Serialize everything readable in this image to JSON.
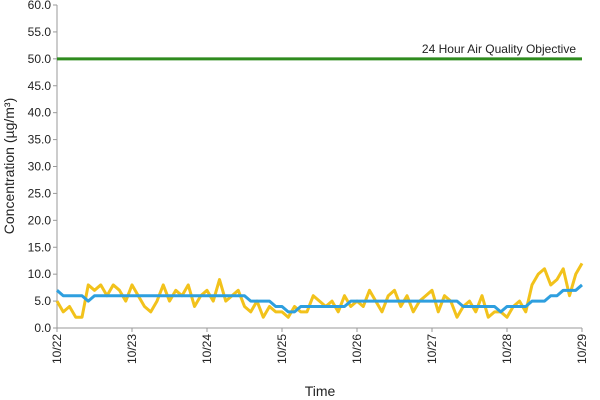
{
  "chart_data": {
    "type": "line",
    "xlabel": "Time",
    "ylabel": "Concentration (µg/m³)",
    "categories": [
      "10/22",
      null,
      null,
      null,
      null,
      null,
      null,
      null,
      null,
      null,
      null,
      null,
      "10/23",
      null,
      null,
      null,
      null,
      null,
      null,
      null,
      null,
      null,
      null,
      null,
      "10/24",
      null,
      null,
      null,
      null,
      null,
      null,
      null,
      null,
      null,
      null,
      null,
      "10/25",
      null,
      null,
      null,
      null,
      null,
      null,
      null,
      null,
      null,
      null,
      null,
      "10/26",
      null,
      null,
      null,
      null,
      null,
      null,
      null,
      null,
      null,
      null,
      null,
      "10/27",
      null,
      null,
      null,
      null,
      null,
      null,
      null,
      null,
      null,
      null,
      null,
      "10/28",
      null,
      null,
      null,
      null,
      null,
      null,
      null,
      null,
      null,
      null,
      null,
      "10/29"
    ],
    "series": [
      {
        "color": "#f2c21b",
        "values": [
          5,
          3,
          4,
          2,
          2,
          8,
          7,
          8,
          6,
          8,
          7,
          5,
          8,
          6,
          4,
          3,
          5,
          8,
          5,
          7,
          6,
          8,
          4,
          6,
          7,
          5,
          9,
          5,
          6,
          7,
          4,
          3,
          5,
          2,
          4,
          3,
          3,
          2,
          4,
          3,
          3,
          6,
          5,
          4,
          5,
          3,
          6,
          4,
          5,
          4,
          7,
          5,
          3,
          6,
          7,
          4,
          6,
          3,
          5,
          6,
          7,
          3,
          6,
          5,
          2,
          4,
          5,
          3,
          6,
          2,
          3,
          3,
          2,
          4,
          5,
          3,
          8,
          10,
          11,
          8,
          9,
          11,
          6,
          10,
          12
        ]
      },
      {
        "color": "#2e9fdf",
        "values": [
          7,
          6,
          6,
          6,
          6,
          5,
          6,
          6,
          6,
          6,
          6,
          6,
          6,
          6,
          6,
          6,
          6,
          6,
          6,
          6,
          6,
          6,
          6,
          6,
          6,
          6,
          6,
          6,
          6,
          6,
          6,
          5,
          5,
          5,
          5,
          4,
          4,
          3,
          3,
          4,
          4,
          4,
          4,
          4,
          4,
          4,
          4,
          5,
          5,
          5,
          5,
          5,
          5,
          5,
          5,
          5,
          5,
          5,
          5,
          5,
          5,
          5,
          5,
          5,
          5,
          4,
          4,
          4,
          4,
          4,
          4,
          3,
          4,
          4,
          4,
          4,
          5,
          5,
          5,
          6,
          6,
          7,
          7,
          7,
          8
        ]
      }
    ],
    "objective": {
      "value": 50,
      "label": "24 Hour Air Quality Objective",
      "color": "#2e8b1e"
    },
    "ylim": [
      0,
      60
    ],
    "yticks": [
      {
        "value": 0,
        "label": "0.0"
      },
      {
        "value": 5,
        "label": "5.0"
      },
      {
        "value": 10,
        "label": "10.0"
      },
      {
        "value": 15,
        "label": "15.0"
      },
      {
        "value": 20,
        "label": "20.0"
      },
      {
        "value": 25,
        "label": "25.0"
      },
      {
        "value": 30,
        "label": "30.0"
      },
      {
        "value": 35,
        "label": "35.0"
      },
      {
        "value": 40,
        "label": "40.0"
      },
      {
        "value": 45,
        "label": "45.0"
      },
      {
        "value": 50,
        "label": "50.0"
      },
      {
        "value": 55,
        "label": "55.0"
      },
      {
        "value": 60,
        "label": "60.0"
      }
    ],
    "grid": false
  }
}
